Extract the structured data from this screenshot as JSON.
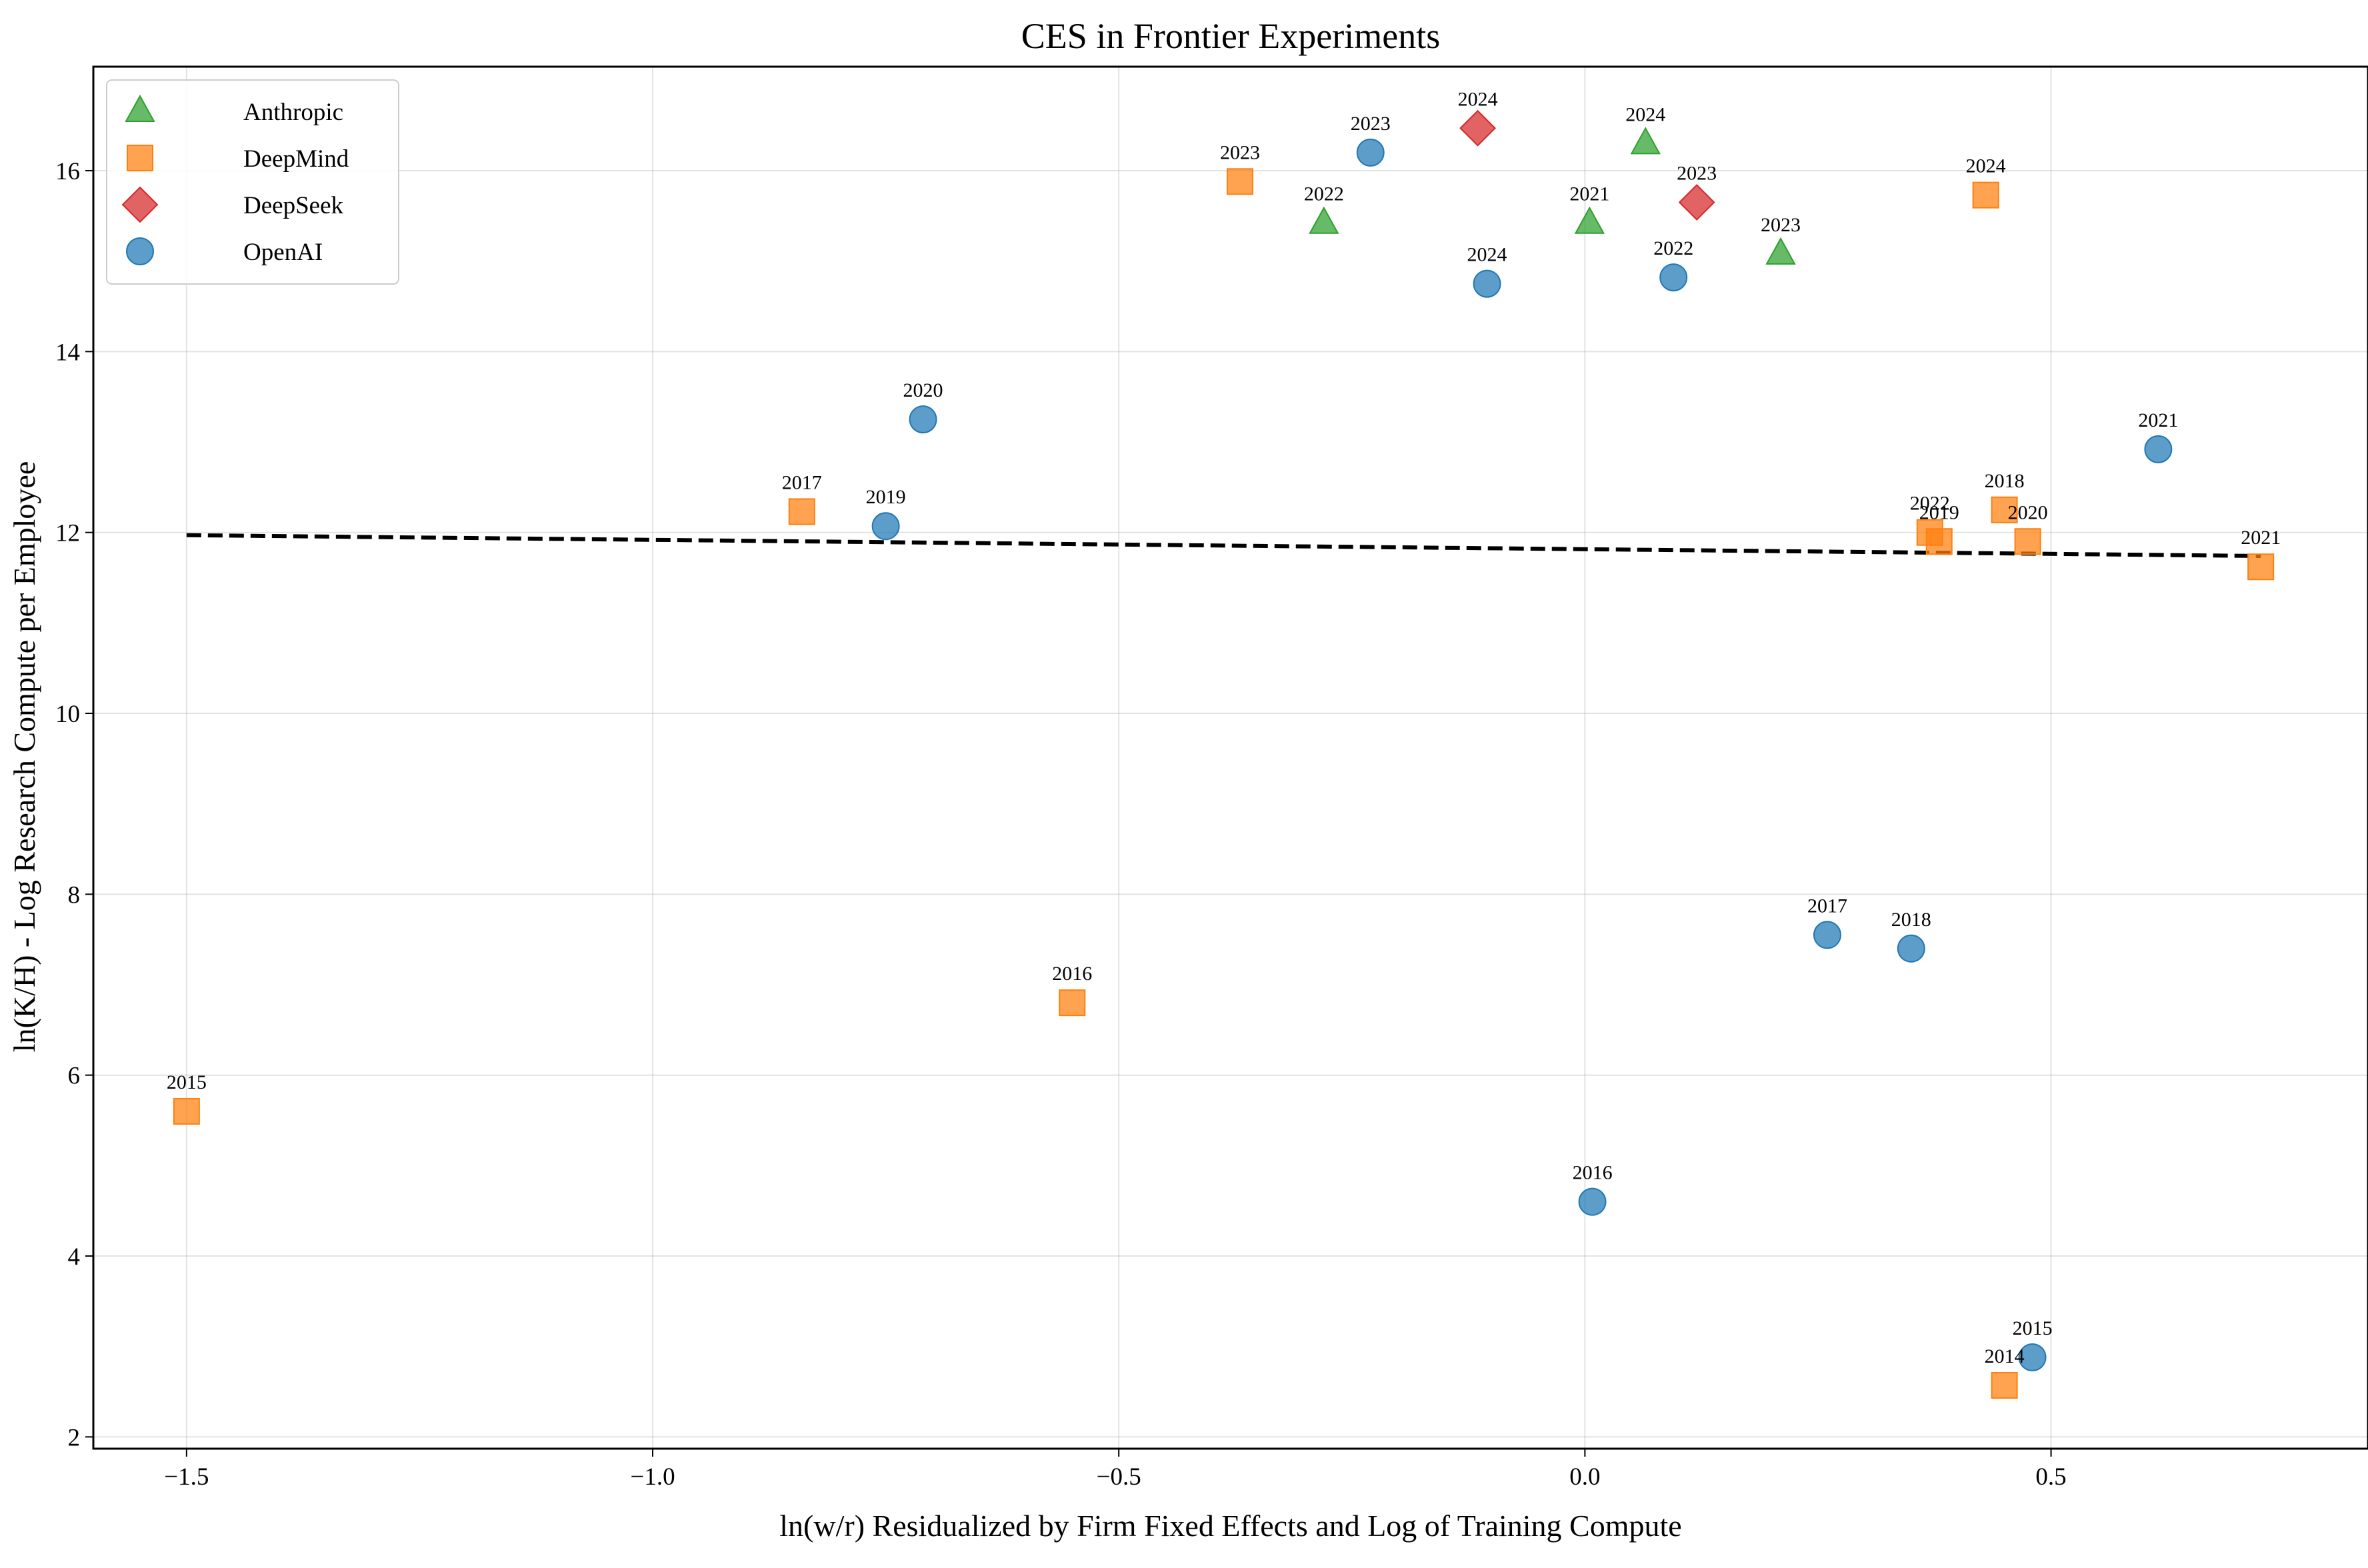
{
  "chart_data": {
    "type": "scatter",
    "title": "CES in Frontier Experiments",
    "xlabel": "ln(w/r) Residualized by Firm Fixed Effects and Log of Training Compute",
    "ylabel": "ln(K/H) - Log Research Compute per Employee",
    "xlim": [
      -1.6,
      0.84
    ],
    "ylim": [
      1.87,
      17.15
    ],
    "grid": true,
    "legend_position": "upper-left",
    "x_ticks": [
      -1.5,
      -1.0,
      -0.5,
      0.0,
      0.5
    ],
    "x_tick_labels": [
      "−1.5",
      "−1.0",
      "−0.5",
      "0.0",
      "0.5"
    ],
    "y_ticks": [
      2,
      4,
      6,
      8,
      10,
      12,
      14,
      16
    ],
    "y_tick_labels": [
      "2",
      "4",
      "6",
      "8",
      "10",
      "12",
      "14",
      "16"
    ],
    "series": [
      {
        "name": "Anthropic",
        "marker": "triangle",
        "color": "#2ca02c",
        "points": [
          {
            "x": -0.28,
            "y": 15.42,
            "label": "2022"
          },
          {
            "x": 0.005,
            "y": 15.42,
            "label": "2021"
          },
          {
            "x": 0.065,
            "y": 16.3,
            "label": "2024"
          },
          {
            "x": 0.21,
            "y": 15.08,
            "label": "2023"
          }
        ]
      },
      {
        "name": "DeepMind",
        "marker": "square",
        "color": "#ff7f0e",
        "points": [
          {
            "x": -1.5,
            "y": 5.6,
            "label": "2015"
          },
          {
            "x": -0.55,
            "y": 6.8,
            "label": "2016"
          },
          {
            "x": -0.84,
            "y": 12.23,
            "label": "2017"
          },
          {
            "x": -0.37,
            "y": 15.88,
            "label": "2023"
          },
          {
            "x": 0.43,
            "y": 15.73,
            "label": "2024"
          },
          {
            "x": 0.45,
            "y": 12.25,
            "label": "2018"
          },
          {
            "x": 0.37,
            "y": 12.0,
            "label": "2022"
          },
          {
            "x": 0.38,
            "y": 11.9,
            "label": "2019"
          },
          {
            "x": 0.475,
            "y": 11.9,
            "label": "2020"
          },
          {
            "x": 0.725,
            "y": 11.62,
            "label": "2021"
          },
          {
            "x": 0.45,
            "y": 2.57,
            "label": "2014"
          }
        ]
      },
      {
        "name": "DeepSeek",
        "marker": "diamond",
        "color": "#d62728",
        "points": [
          {
            "x": -0.115,
            "y": 16.47,
            "label": "2024"
          },
          {
            "x": 0.12,
            "y": 15.65,
            "label": "2023"
          }
        ]
      },
      {
        "name": "OpenAI",
        "marker": "circle",
        "color": "#1f77b4",
        "points": [
          {
            "x": -0.23,
            "y": 16.2,
            "label": "2023"
          },
          {
            "x": -0.105,
            "y": 14.75,
            "label": "2024"
          },
          {
            "x": 0.095,
            "y": 14.82,
            "label": "2022"
          },
          {
            "x": -0.71,
            "y": 13.25,
            "label": "2020"
          },
          {
            "x": -0.75,
            "y": 12.07,
            "label": "2019"
          },
          {
            "x": 0.615,
            "y": 12.92,
            "label": "2021"
          },
          {
            "x": 0.26,
            "y": 7.55,
            "label": "2017"
          },
          {
            "x": 0.35,
            "y": 7.4,
            "label": "2018"
          },
          {
            "x": 0.008,
            "y": 4.6,
            "label": "2016"
          },
          {
            "x": 0.48,
            "y": 2.88,
            "label": "2015"
          }
        ]
      }
    ],
    "fit_line": {
      "style": "dashed",
      "color": "#000000",
      "x": [
        -1.5,
        0.725
      ],
      "y": [
        11.97,
        11.74
      ]
    }
  }
}
